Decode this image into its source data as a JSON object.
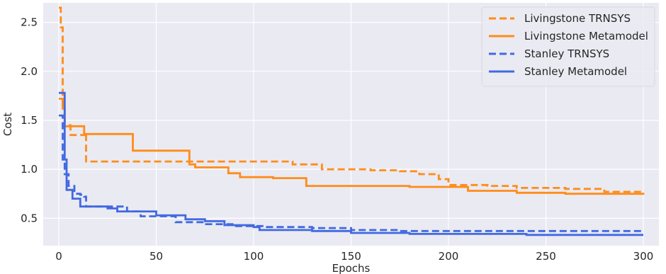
{
  "chart_data": {
    "type": "line",
    "title": "",
    "xlabel": "Epochs",
    "ylabel": "Cost",
    "xlim": [
      -8,
      308
    ],
    "ylim": [
      0.22,
      2.7
    ],
    "xticks": [
      0,
      50,
      100,
      150,
      200,
      250,
      300
    ],
    "yticks": [
      0.5,
      1.0,
      1.5,
      2.0,
      2.5
    ],
    "xtick_labels": [
      "0",
      "50",
      "100",
      "150",
      "200",
      "250",
      "300"
    ],
    "ytick_labels": [
      "0.5",
      "1.0",
      "1.5",
      "2.0",
      "2.5"
    ],
    "grid": true,
    "legend_position": "top-right",
    "series": [
      {
        "name": "Livingstone TRNSYS",
        "color": "#ff8c1a",
        "dash": true,
        "step": true,
        "x": [
          0,
          1,
          2,
          3,
          6,
          13,
          14,
          30,
          60,
          100,
          120,
          135,
          150,
          160,
          175,
          185,
          195,
          200,
          220,
          235,
          260,
          280,
          300
        ],
        "y": [
          2.65,
          2.45,
          1.62,
          1.45,
          1.35,
          1.38,
          1.08,
          1.08,
          1.08,
          1.08,
          1.05,
          1.0,
          1.0,
          0.99,
          0.98,
          0.95,
          0.9,
          0.84,
          0.83,
          0.81,
          0.8,
          0.77,
          0.76
        ]
      },
      {
        "name": "Livingstone Metamodel",
        "color": "#ff8c1a",
        "dash": false,
        "step": true,
        "x": [
          0,
          1,
          2,
          3,
          10,
          13,
          36,
          38,
          65,
          67,
          70,
          87,
          93,
          110,
          127,
          180,
          210,
          235,
          260,
          300
        ],
        "y": [
          1.72,
          1.72,
          1.62,
          1.44,
          1.44,
          1.36,
          1.36,
          1.19,
          1.19,
          1.05,
          1.02,
          0.96,
          0.92,
          0.91,
          0.83,
          0.82,
          0.78,
          0.76,
          0.75,
          0.74
        ]
      },
      {
        "name": "Stanley TRNSYS",
        "color": "#4169e1",
        "dash": true,
        "step": true,
        "x": [
          0,
          1,
          2,
          3,
          5,
          8,
          11,
          13,
          14,
          35,
          42,
          60,
          75,
          90,
          105,
          130,
          150,
          175,
          200,
          250,
          300
        ],
        "y": [
          1.55,
          1.55,
          1.1,
          0.95,
          0.83,
          0.75,
          0.74,
          0.72,
          0.62,
          0.57,
          0.52,
          0.46,
          0.44,
          0.42,
          0.41,
          0.4,
          0.38,
          0.37,
          0.37,
          0.37,
          0.37
        ]
      },
      {
        "name": "Stanley Metamodel",
        "color": "#4169e1",
        "dash": false,
        "step": true,
        "x": [
          0,
          2,
          3,
          4,
          7,
          11,
          25,
          30,
          50,
          65,
          75,
          85,
          100,
          103,
          130,
          150,
          180,
          210,
          240,
          300
        ],
        "y": [
          1.78,
          1.78,
          1.1,
          0.79,
          0.7,
          0.62,
          0.6,
          0.57,
          0.53,
          0.49,
          0.47,
          0.43,
          0.41,
          0.38,
          0.37,
          0.35,
          0.34,
          0.34,
          0.33,
          0.33
        ]
      }
    ]
  }
}
